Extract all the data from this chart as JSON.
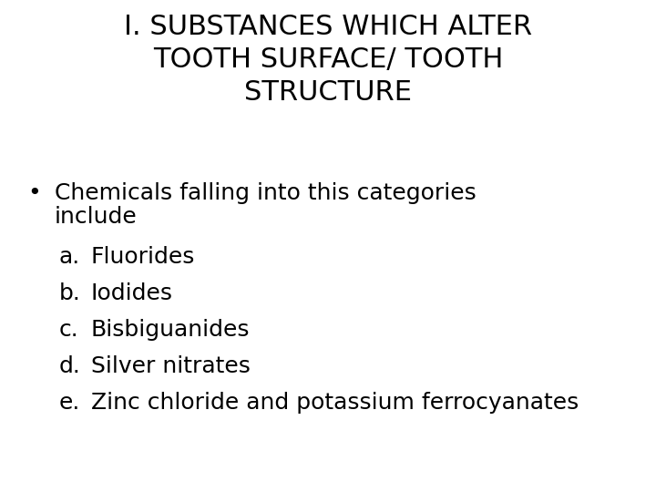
{
  "background_color": "#ffffff",
  "title_line1": "I. SUBSTANCES WHICH ALTER",
  "title_line2": "TOOTH SURFACE/ TOOTH",
  "title_line3": "STRUCTURE",
  "title_fontsize": 22,
  "title_fontweight": "normal",
  "title_color": "#000000",
  "bullet_text_line1": "Chemicals falling into this categories",
  "bullet_text_line2": "include",
  "bullet_fontsize": 18,
  "bullet_color": "#000000",
  "bullet_symbol": "•",
  "list_items": [
    [
      "a.",
      "Fluorides"
    ],
    [
      "b.",
      "Iodides"
    ],
    [
      "c.",
      "Bisbiguanides"
    ],
    [
      "d.",
      "Silver nitrates"
    ],
    [
      "e.",
      "Zinc chloride and potassium ferrocyanates"
    ]
  ],
  "list_fontsize": 18,
  "list_color": "#000000",
  "font_family": "DejaVu Sans"
}
